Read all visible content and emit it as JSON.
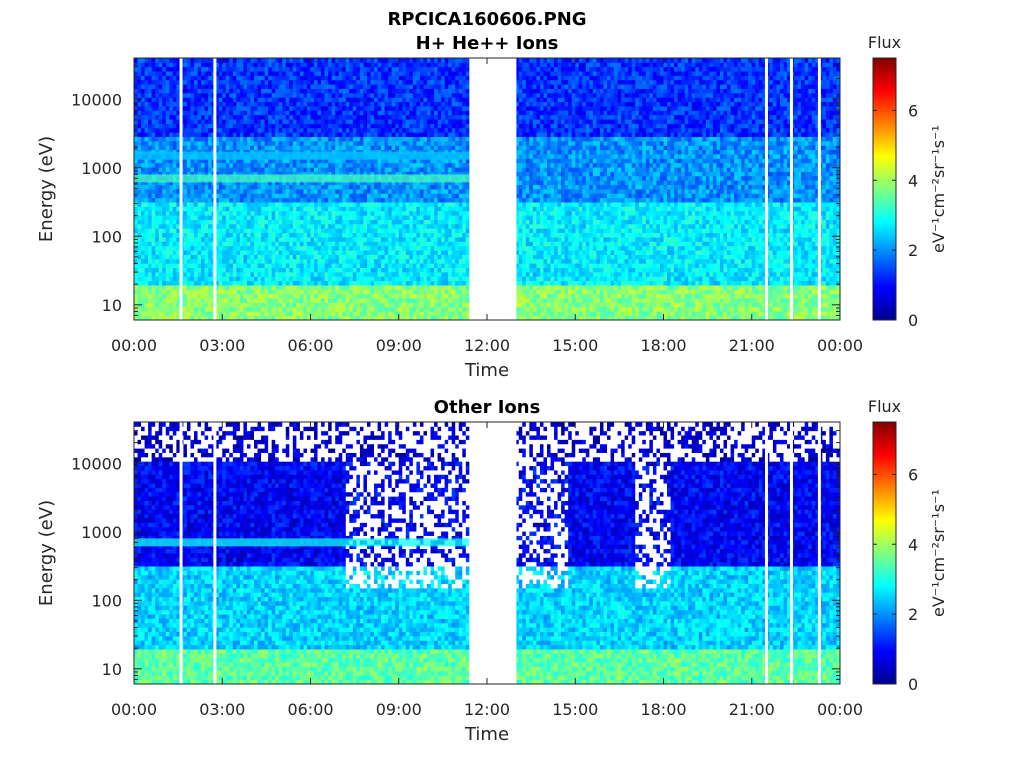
{
  "figure": {
    "file_title": "RPCICA160606.PNG"
  },
  "chart_data": [
    {
      "type": "heatmap",
      "title": "H+ He++ Ions",
      "xlabel": "Time",
      "ylabel": "Energy (eV)",
      "y_scale": "log",
      "ylim": [
        6,
        40000
      ],
      "x_ticks": [
        "00:00",
        "03:00",
        "06:00",
        "09:00",
        "12:00",
        "15:00",
        "18:00",
        "21:00",
        "00:00"
      ],
      "x_tick_hours": [
        0,
        3,
        6,
        9,
        12,
        15,
        18,
        21,
        24
      ],
      "y_ticks": [
        10,
        100,
        1000,
        10000
      ],
      "y_tick_labels": [
        "10",
        "100",
        "1000",
        "10000"
      ],
      "data_gap_hours": [
        11.4,
        13.0
      ],
      "white_lines_hours": [
        1.6,
        2.75,
        21.5,
        22.35,
        23.3
      ],
      "bands": [
        {
          "energy_range_eV": [
            6,
            20
          ],
          "flux_level": 3.8
        },
        {
          "energy_range_eV": [
            20,
            300
          ],
          "flux_level": 2.7
        },
        {
          "energy_range_eV": [
            300,
            3000
          ],
          "flux_level": 2.0
        },
        {
          "energy_range_eV": [
            3000,
            40000
          ],
          "flux_level": 1.3
        }
      ],
      "features": [
        {
          "type": "line",
          "energy_eV": 700,
          "hours": [
            0,
            11.4
          ],
          "flux_level": 3.3
        },
        {
          "type": "line",
          "energy_eV": 1500,
          "hours": [
            0,
            11.4
          ],
          "flux_level": 2.4
        }
      ],
      "colorbar": {
        "label": "Flux",
        "unit": "eV⁻¹cm⁻²sr⁻¹s⁻¹",
        "range": [
          0,
          7.5
        ],
        "ticks": [
          "0",
          "2",
          "4",
          "6"
        ],
        "tick_values": [
          0,
          2,
          4,
          6
        ]
      }
    },
    {
      "type": "heatmap",
      "title": "Other Ions",
      "xlabel": "Time",
      "ylabel": "Energy (eV)",
      "y_scale": "log",
      "ylim": [
        6,
        40000
      ],
      "x_ticks": [
        "00:00",
        "03:00",
        "06:00",
        "09:00",
        "12:00",
        "15:00",
        "18:00",
        "21:00",
        "00:00"
      ],
      "x_tick_hours": [
        0,
        3,
        6,
        9,
        12,
        15,
        18,
        21,
        24
      ],
      "y_ticks": [
        10,
        100,
        1000,
        10000
      ],
      "y_tick_labels": [
        "10",
        "100",
        "1000",
        "10000"
      ],
      "data_gap_hours": [
        11.4,
        13.0
      ],
      "white_lines_hours": [
        1.6,
        2.75,
        21.5,
        22.35,
        23.3
      ],
      "bands": [
        {
          "energy_range_eV": [
            6,
            20
          ],
          "flux_level": 3.5
        },
        {
          "energy_range_eV": [
            20,
            300
          ],
          "flux_level": 2.5
        },
        {
          "energy_range_eV": [
            300,
            11000
          ],
          "flux_level": 0.9
        },
        {
          "energy_range_eV": [
            11000,
            40000
          ],
          "flux_level": 0.6
        }
      ],
      "features": [
        {
          "type": "line",
          "energy_eV": 700,
          "hours": [
            0,
            11.4
          ],
          "flux_level": 2.9
        },
        {
          "type": "sparse",
          "energy_range_eV": [
            11000,
            40000
          ],
          "hours": [
            0,
            24
          ]
        },
        {
          "type": "sparse",
          "energy_range_eV": [
            150,
            11000
          ],
          "hours": [
            7.2,
            11.4
          ]
        },
        {
          "type": "sparse",
          "energy_range_eV": [
            150,
            11000
          ],
          "hours": [
            13.0,
            14.8
          ]
        },
        {
          "type": "sparse",
          "energy_range_eV": [
            150,
            11000
          ],
          "hours": [
            17.0,
            18.2
          ]
        }
      ],
      "colorbar": {
        "label": "Flux",
        "unit": "eV⁻¹cm⁻²sr⁻¹s⁻¹",
        "range": [
          0,
          7.5
        ],
        "ticks": [
          "0",
          "2",
          "4",
          "6"
        ],
        "tick_values": [
          0,
          2,
          4,
          6
        ]
      }
    }
  ]
}
